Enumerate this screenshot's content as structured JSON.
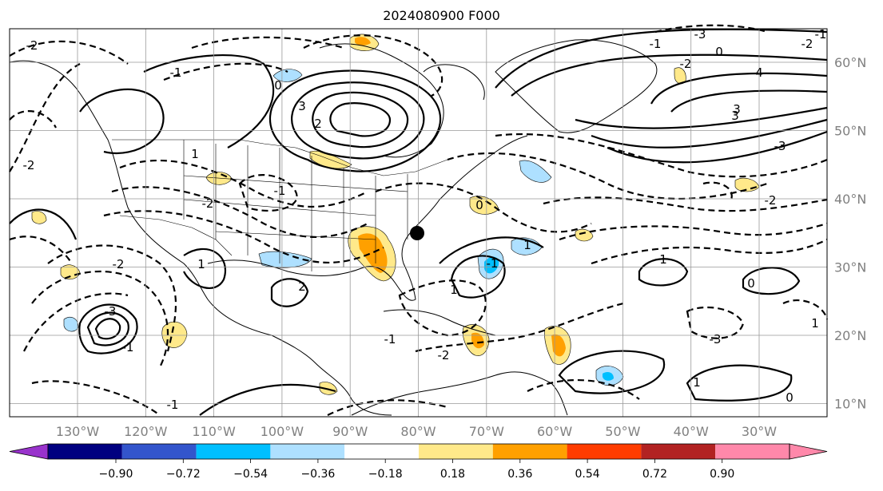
{
  "title": "2024080900 F000",
  "map": {
    "lon_labels": [
      "130°W",
      "120°W",
      "110°W",
      "100°W",
      "90°W",
      "80°W",
      "70°W",
      "60°W",
      "50°W",
      "40°W",
      "30°W"
    ],
    "lat_labels": [
      "60°N",
      "50°N",
      "40°N",
      "30°N",
      "20°N",
      "10°N"
    ],
    "contour_labels": [
      "-2",
      "-1",
      "-2",
      "-1",
      "-3",
      "-2",
      "2",
      "3",
      "0",
      "4",
      "3",
      "-3",
      "0",
      "-3",
      "-2",
      "1",
      "0",
      "1",
      "-1",
      "-2",
      "-1",
      "-2",
      "-3",
      "-2",
      "1",
      "0",
      "-1",
      "3",
      "2",
      "1",
      "0",
      "1",
      "-1",
      "-1",
      "-2",
      "-1",
      "1",
      "1"
    ],
    "marker": "location-dot"
  },
  "colorbar": {
    "tick_labels": [
      "−0.90",
      "−0.72",
      "−0.54",
      "−0.36",
      "−0.18",
      "0.18",
      "0.36",
      "0.54",
      "0.72",
      "0.90"
    ],
    "colors": [
      "#9933cc",
      "#000080",
      "#3355cc",
      "#00bfff",
      "#aee0ff",
      "#ffffff",
      "#ffe98a",
      "#ffa000",
      "#ff3c00",
      "#b22222",
      "#ff88aa"
    ]
  }
}
